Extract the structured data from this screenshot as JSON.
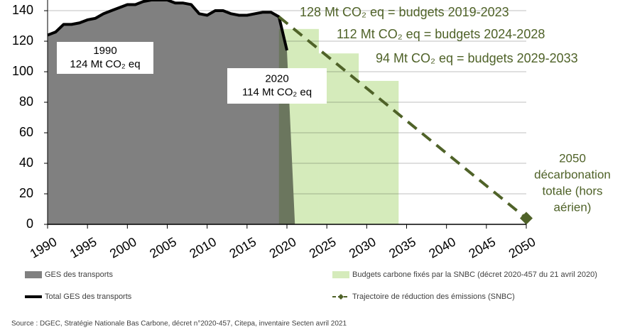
{
  "chart_data": {
    "type": "combo",
    "xlim": [
      1990,
      2050
    ],
    "xticks": [
      1990,
      1995,
      2000,
      2005,
      2010,
      2015,
      2020,
      2025,
      2030,
      2035,
      2040,
      2045,
      2050
    ],
    "ylim": [
      0,
      147
    ],
    "yticks": [
      0,
      20,
      40,
      60,
      80,
      100,
      120,
      140
    ],
    "grid": true,
    "series": [
      {
        "name": "GES des transports",
        "type": "area",
        "color": "#808080",
        "x": [
          1990,
          1991,
          1992,
          1993,
          1994,
          1995,
          1996,
          1997,
          1998,
          1999,
          2000,
          2001,
          2002,
          2003,
          2004,
          2005,
          2006,
          2007,
          2008,
          2009,
          2010,
          2011,
          2012,
          2013,
          2014,
          2015,
          2016,
          2017,
          2018,
          2019,
          2020,
          2021
        ],
        "values": [
          124,
          126,
          131,
          131,
          132,
          134,
          135,
          138,
          140,
          142,
          144,
          144,
          146,
          147,
          147,
          147,
          145,
          145,
          144,
          138,
          137,
          140,
          140,
          138,
          137,
          137,
          138,
          139,
          139,
          136,
          114,
          0
        ]
      },
      {
        "name": "Budgets carbone fixés par la SNBC (décret 2020-457 du 21 avril 2020)",
        "type": "bar",
        "color": "#d5ebbb",
        "starts": [
          2019,
          2024,
          2029
        ],
        "ends": [
          2024,
          2029,
          2034
        ],
        "values": [
          128,
          112,
          94
        ],
        "value_labels": [
          "128 Mt CO₂ eq = budgets 2019-2023",
          "112 Mt CO₂ eq = budgets 2024-2028",
          "94 Mt CO₂ eq = budgets 2029-2033"
        ]
      },
      {
        "name": "Total GES des transports",
        "type": "line",
        "color": "#000000",
        "x": [
          1990,
          1991,
          1992,
          1993,
          1994,
          1995,
          1996,
          1997,
          1998,
          1999,
          2000,
          2001,
          2002,
          2003,
          2004,
          2005,
          2006,
          2007,
          2008,
          2009,
          2010,
          2011,
          2012,
          2013,
          2014,
          2015,
          2016,
          2017,
          2018,
          2019,
          2020
        ],
        "values": [
          124,
          126,
          131,
          131,
          132,
          134,
          135,
          138,
          140,
          142,
          144,
          144,
          146,
          147,
          147,
          147,
          145,
          145,
          144,
          138,
          137,
          140,
          140,
          138,
          137,
          137,
          138,
          139,
          139,
          136,
          114
        ]
      },
      {
        "name": "Trajectoire de réduction des émissions (SNBC)",
        "type": "dashed-line",
        "color": "#4f6228",
        "marker": "diamond",
        "x": [
          2019,
          2050
        ],
        "values": [
          136,
          4
        ]
      }
    ],
    "annotations": [
      {
        "lines": [
          "1990",
          "124 Mt CO₂ eq"
        ]
      },
      {
        "lines": [
          "2020",
          "114 Mt CO₂ eq"
        ]
      },
      {
        "lines": [
          "2050",
          "décarbonation",
          "totale (hors",
          "aérien)"
        ]
      }
    ],
    "source": "Source : DGEC, Stratégie Nationale Bas Carbone, décret n°2020-457, Citepa, inventaire Secten avril 2021"
  }
}
